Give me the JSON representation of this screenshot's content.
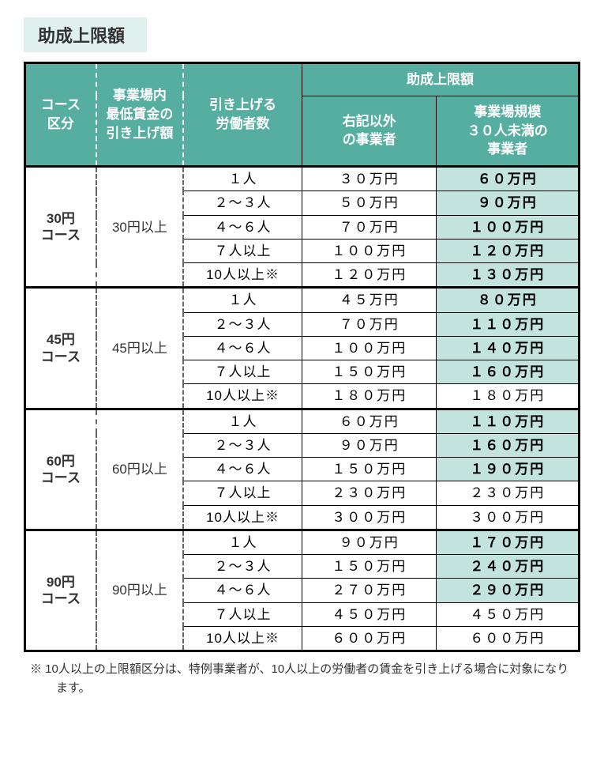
{
  "title": "助成上限額",
  "colors": {
    "title_bg": "#dff0ed",
    "header_bg": "#56aea1",
    "under30_highlight_bg": "#c2e3de",
    "under30_plain_bg": "#ffffff",
    "text_header": "#ffffff",
    "text_body": "#333333",
    "border": "#000000"
  },
  "header": {
    "course": "コース\n区分",
    "raise": "事業場内\n最低賃金の\n引き上げ額",
    "workers": "引き上げる\n労働者数",
    "limit_span": "助成上限額",
    "other": "右記以外\nの事業者",
    "under30": "事業場規模\n３０人未満の\n事業者"
  },
  "groups": [
    {
      "course": "30円\nコース",
      "raise": "30円以上",
      "rows": [
        {
          "workers": "１人",
          "other": "３０万円",
          "under30": "６０万円",
          "hl": true
        },
        {
          "workers": "２～３人",
          "other": "５０万円",
          "under30": "９０万円",
          "hl": true
        },
        {
          "workers": "４～６人",
          "other": "７０万円",
          "under30": "１００万円",
          "hl": true
        },
        {
          "workers": "７人以上",
          "other": "１００万円",
          "under30": "１２０万円",
          "hl": true
        },
        {
          "workers": "10人以上※",
          "other": "１２０万円",
          "under30": "１３０万円",
          "hl": true
        }
      ]
    },
    {
      "course": "45円\nコース",
      "raise": "45円以上",
      "rows": [
        {
          "workers": "１人",
          "other": "４５万円",
          "under30": "８０万円",
          "hl": true
        },
        {
          "workers": "２～３人",
          "other": "７０万円",
          "under30": "１１０万円",
          "hl": true
        },
        {
          "workers": "４～６人",
          "other": "１００万円",
          "under30": "１４０万円",
          "hl": true
        },
        {
          "workers": "７人以上",
          "other": "１５０万円",
          "under30": "１６０万円",
          "hl": true
        },
        {
          "workers": "10人以上※",
          "other": "１８０万円",
          "under30": "１８０万円",
          "hl": false
        }
      ]
    },
    {
      "course": "60円\nコース",
      "raise": "60円以上",
      "rows": [
        {
          "workers": "１人",
          "other": "６０万円",
          "under30": "１１０万円",
          "hl": true
        },
        {
          "workers": "２～３人",
          "other": "９０万円",
          "under30": "１６０万円",
          "hl": true
        },
        {
          "workers": "４～６人",
          "other": "１５０万円",
          "under30": "１９０万円",
          "hl": true
        },
        {
          "workers": "７人以上",
          "other": "２３０万円",
          "under30": "２３０万円",
          "hl": false
        },
        {
          "workers": "10人以上※",
          "other": "３００万円",
          "under30": "３００万円",
          "hl": false
        }
      ]
    },
    {
      "course": "90円\nコース",
      "raise": "90円以上",
      "rows": [
        {
          "workers": "１人",
          "other": "９０万円",
          "under30": "１７０万円",
          "hl": true
        },
        {
          "workers": "２～３人",
          "other": "１５０万円",
          "under30": "２４０万円",
          "hl": true
        },
        {
          "workers": "４～６人",
          "other": "２７０万円",
          "under30": "２９０万円",
          "hl": true
        },
        {
          "workers": "７人以上",
          "other": "４５０万円",
          "under30": "４５０万円",
          "hl": false
        },
        {
          "workers": "10人以上※",
          "other": "６００万円",
          "under30": "６００万円",
          "hl": false
        }
      ]
    }
  ],
  "footnote": "※ 10人以上の上限額区分は、特例事業者が、10人以上の労働者の賃金を引き上げる場合に対象になります。"
}
